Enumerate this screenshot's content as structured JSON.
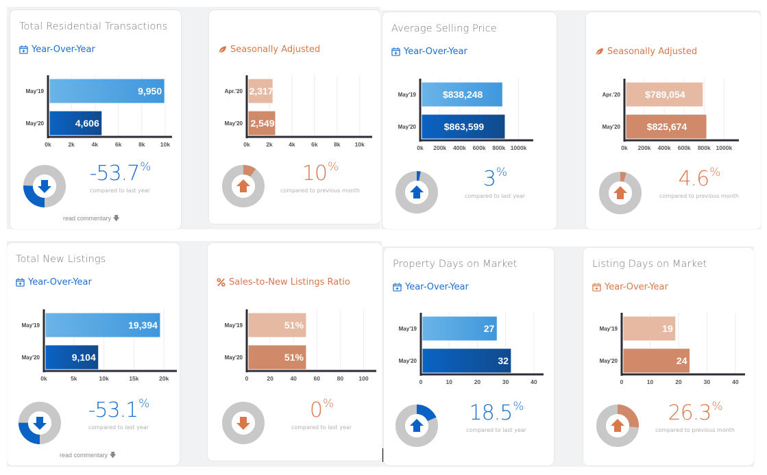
{
  "colors": {
    "blue_accent": "#1a6fd0",
    "orange_accent": "#d9784a",
    "blue_bar_light_start": "#6ab4e8",
    "blue_bar_light_end": "#3f97dc",
    "blue_bar_dark_start": "#0a63c4",
    "blue_bar_dark_end": "#114a8c",
    "orange_bar_light": "#e6b9a3",
    "orange_bar_dark": "#d18a69",
    "donut_track": "#c8c8c8",
    "axis": "#2d2d35"
  },
  "cards": [
    {
      "title": "Total Residential Transactions",
      "subtitle": "Year-Over-Year",
      "subtitle_icon": "calendar-plus-icon",
      "theme": "blue",
      "change": {
        "value": "-53.7",
        "unit": "%",
        "caption": "compared to last year",
        "direction": "down",
        "fraction": 0.537
      },
      "read_commentary": "read commentary"
    },
    {
      "title": "",
      "subtitle": "Seasonally Adjusted",
      "subtitle_icon": "leaf-icon",
      "theme": "orange",
      "change": {
        "value": "10",
        "unit": "%",
        "caption": "compared to previous month",
        "direction": "up",
        "fraction": 0.1
      }
    },
    {
      "title": "Average Selling Price",
      "subtitle": "Year-Over-Year",
      "subtitle_icon": "calendar-plus-icon",
      "theme": "blue",
      "change": {
        "value": "3",
        "unit": "%",
        "caption": "compared to last year",
        "direction": "up",
        "fraction": 0.03
      }
    },
    {
      "title": "",
      "subtitle": "Seasonally Adjusted",
      "subtitle_icon": "leaf-icon",
      "theme": "orange",
      "change": {
        "value": "4.6",
        "unit": "%",
        "caption": "compared to previous month",
        "direction": "up",
        "fraction": 0.046
      }
    },
    {
      "title": "Total New Listings",
      "subtitle": "Year-Over-Year",
      "subtitle_icon": "calendar-plus-icon",
      "theme": "blue",
      "change": {
        "value": "-53.1",
        "unit": "%",
        "caption": "compared to last year",
        "direction": "down",
        "fraction": 0.531
      },
      "read_commentary": "read commentary"
    },
    {
      "title": "",
      "subtitle": "Sales-to-New Listings Ratio",
      "subtitle_icon": "percent-icon",
      "theme": "orange",
      "change": {
        "value": "0",
        "unit": "%",
        "caption": "compared to last year",
        "direction": "down",
        "fraction": 0
      }
    },
    {
      "title": "Property Days on Market",
      "subtitle": "Year-Over-Year",
      "subtitle_icon": "calendar-plus-icon",
      "theme": "blue",
      "change": {
        "value": "18.5",
        "unit": "%",
        "caption": "compared to last year",
        "direction": "up",
        "fraction": 0.185
      }
    },
    {
      "title": "Listing Days on Market",
      "subtitle": "Year-Over-Year",
      "subtitle_icon": "calendar-plus-icon",
      "theme": "orange",
      "change": {
        "value": "26.3",
        "unit": "%",
        "caption": "compared to previous month",
        "direction": "up",
        "fraction": 0.263
      }
    }
  ],
  "chart_data": [
    {
      "type": "bar",
      "orientation": "horizontal",
      "title": "Total Residential Transactions - Year-Over-Year",
      "categories": [
        "May'19",
        "May'20"
      ],
      "values": [
        9950,
        4606
      ],
      "labels": [
        "9,950",
        "4,606"
      ],
      "xlim": [
        0,
        10000
      ],
      "ticks": [
        0,
        2000,
        4000,
        6000,
        8000,
        10000
      ],
      "tick_labels": [
        "0k",
        "2k",
        "4k",
        "6k",
        "8k",
        "10k"
      ],
      "grid": true
    },
    {
      "type": "bar",
      "orientation": "horizontal",
      "title": "Total Residential Transactions - Seasonally Adjusted",
      "categories": [
        "Apr.'20",
        "May'20"
      ],
      "values": [
        2317,
        2549
      ],
      "labels": [
        "2,317",
        "2,549"
      ],
      "xlim": [
        0,
        10500
      ],
      "ticks": [
        0,
        2000,
        4000,
        6000,
        8000,
        10000
      ],
      "tick_labels": [
        "0k",
        "2k",
        "4k",
        "6k",
        "8k",
        "10k"
      ],
      "grid": true
    },
    {
      "type": "bar",
      "orientation": "horizontal",
      "title": "Average Selling Price - Year-Over-Year",
      "categories": [
        "May'19",
        "May'20"
      ],
      "values": [
        838248,
        863599
      ],
      "labels": [
        "$838,248",
        "$863,599"
      ],
      "xlim": [
        0,
        1080000
      ],
      "ticks": [
        0,
        200000,
        400000,
        600000,
        800000,
        1000000
      ],
      "tick_labels": [
        "0k",
        "200k",
        "400k",
        "600k",
        "800k",
        "1000k"
      ],
      "grid": true
    },
    {
      "type": "bar",
      "orientation": "horizontal",
      "title": "Average Selling Price - Seasonally Adjusted",
      "categories": [
        "Apr.'20",
        "May'20"
      ],
      "values": [
        789054,
        825674
      ],
      "labels": [
        "$789,054",
        "$825,674"
      ],
      "xlim": [
        0,
        1080000
      ],
      "ticks": [
        0,
        200000,
        400000,
        600000,
        800000,
        1000000
      ],
      "tick_labels": [
        "0k",
        "200k",
        "400k",
        "600k",
        "800k",
        "1000k"
      ],
      "grid": true
    },
    {
      "type": "bar",
      "orientation": "horizontal",
      "title": "Total New Listings - Year-Over-Year",
      "categories": [
        "May'19",
        "May'20"
      ],
      "values": [
        19394,
        9104
      ],
      "labels": [
        "19,394",
        "9,104"
      ],
      "xlim": [
        0,
        21000
      ],
      "ticks": [
        0,
        5000,
        10000,
        15000,
        20000
      ],
      "tick_labels": [
        "0k",
        "5k",
        "10k",
        "15k",
        "20k"
      ],
      "grid": true
    },
    {
      "type": "bar",
      "orientation": "horizontal",
      "title": "Sales-to-New Listings Ratio",
      "categories": [
        "May'19",
        "May'20"
      ],
      "values": [
        51,
        51
      ],
      "labels": [
        "51%",
        "51%"
      ],
      "xlim": [
        0,
        105
      ],
      "ticks": [
        0,
        20,
        40,
        60,
        80,
        100
      ],
      "tick_labels": [
        "0",
        "20",
        "40",
        "60",
        "80",
        "100"
      ],
      "grid": true
    },
    {
      "type": "bar",
      "orientation": "horizontal",
      "title": "Property Days on Market - Year-Over-Year",
      "categories": [
        "May'19",
        "May'20"
      ],
      "values": [
        27,
        32
      ],
      "labels": [
        "27",
        "32"
      ],
      "xlim": [
        0,
        41
      ],
      "ticks": [
        0,
        10,
        20,
        30,
        40
      ],
      "tick_labels": [
        "0",
        "10",
        "20",
        "30",
        "40"
      ],
      "grid": true
    },
    {
      "type": "bar",
      "orientation": "horizontal",
      "title": "Listing Days on Market - Year-Over-Year",
      "categories": [
        "May'19",
        "May'20"
      ],
      "values": [
        19,
        24
      ],
      "labels": [
        "19",
        "24"
      ],
      "xlim": [
        0,
        41
      ],
      "ticks": [
        0,
        10,
        20,
        30,
        40
      ],
      "tick_labels": [
        "0",
        "10",
        "20",
        "30",
        "40"
      ],
      "grid": true
    }
  ]
}
